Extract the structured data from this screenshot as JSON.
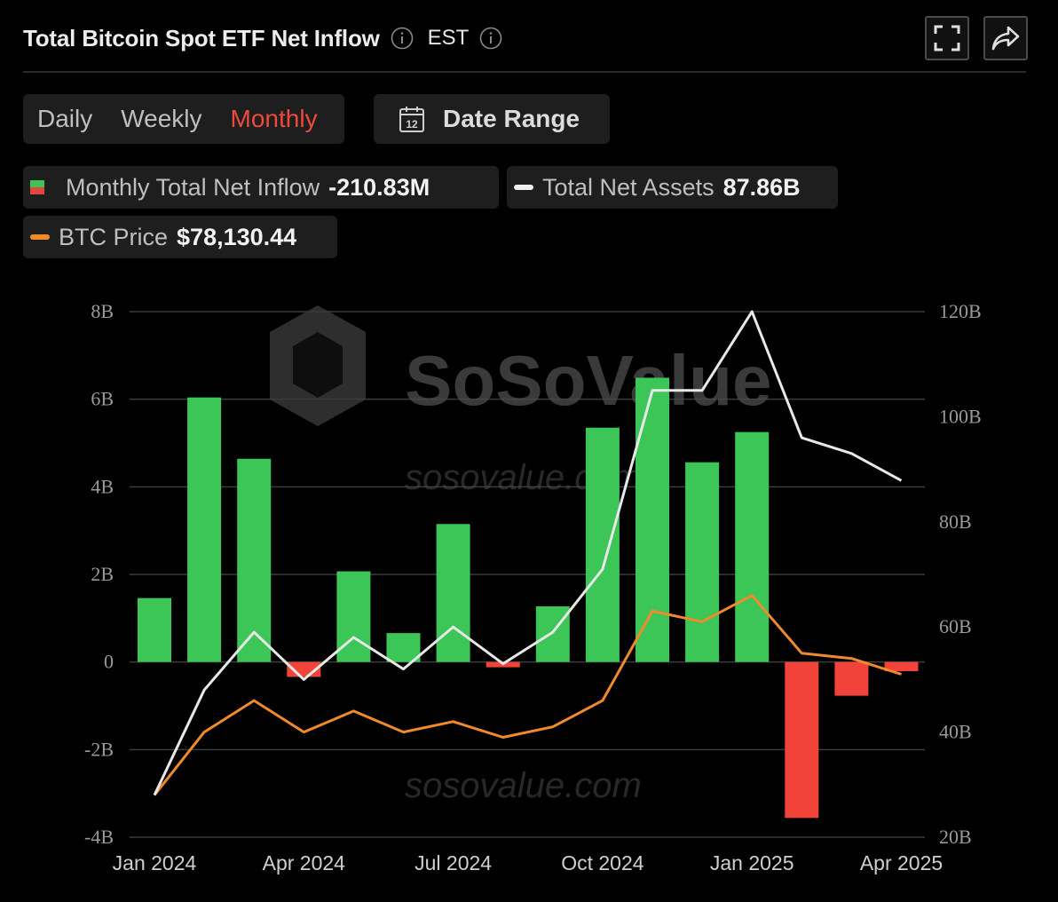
{
  "header": {
    "title": "Total Bitcoin Spot ETF Net Inflow",
    "timezone": "EST",
    "icons": [
      "info-icon",
      "fullscreen-icon",
      "share-icon"
    ]
  },
  "periods": {
    "daily": "Daily",
    "weekly": "Weekly",
    "monthly": "Monthly",
    "active": "Monthly"
  },
  "date_range": {
    "label": "Date Range",
    "icon_number": "12"
  },
  "legend": {
    "inflow": {
      "label": "Monthly Total Net Inflow",
      "value": "-210.83M"
    },
    "assets": {
      "label": "Total Net Assets",
      "value": "87.86B"
    },
    "price": {
      "label": "BTC Price",
      "value": "$78,130.44"
    }
  },
  "watermark": {
    "brand": "SoSoValue",
    "url": "sosovalue.com"
  },
  "colors": {
    "positive": "#3cc658",
    "negative": "#f2433a",
    "assets_line": "#e8e8e8",
    "price_line": "#f08a2b",
    "active_tab": "#ee4a3c",
    "grid": "#3c3c3c"
  },
  "chart_data": {
    "type": "bar",
    "categories": [
      "Jan 2024",
      "Feb 2024",
      "Mar 2024",
      "Apr 2024",
      "May 2024",
      "Jun 2024",
      "Jul 2024",
      "Aug 2024",
      "Sep 2024",
      "Oct 2024",
      "Nov 2024",
      "Dec 2024",
      "Jan 2025",
      "Feb 2025",
      "Mar 2025",
      "Apr 2025"
    ],
    "x_tick_labels": [
      "Jan 2024",
      "Apr 2024",
      "Jul 2024",
      "Oct 2024",
      "Jan 2025",
      "Apr 2025"
    ],
    "left_axis": {
      "ticks": [
        "8B",
        "6B",
        "4B",
        "2B",
        "0",
        "-2B",
        "-4B"
      ],
      "ylim_billion": [
        -4,
        8
      ]
    },
    "right_axis": {
      "ticks": [
        "120B",
        "100B",
        "80B",
        "60B",
        "40B",
        "20B"
      ],
      "ylim_billion": [
        20,
        120
      ]
    },
    "series": [
      {
        "name": "Monthly Total Net Inflow",
        "kind": "bar",
        "axis": "left",
        "unit": "billion USD",
        "values": [
          1.46,
          6.04,
          4.64,
          -0.34,
          2.07,
          0.66,
          3.15,
          -0.12,
          1.27,
          5.35,
          6.49,
          4.56,
          5.25,
          -3.56,
          -0.77,
          -0.21
        ]
      },
      {
        "name": "Total Net Assets",
        "kind": "line",
        "axis": "right",
        "unit": "billion USD",
        "values": [
          28.0,
          48.0,
          59.0,
          50.0,
          58.0,
          52.0,
          60.0,
          53.0,
          59.0,
          71.0,
          105.0,
          105.0,
          120.0,
          96.0,
          93.0,
          87.86
        ]
      },
      {
        "name": "BTC Price",
        "kind": "line",
        "axis": "right",
        "unit": "index on right axis",
        "values": [
          28.0,
          40.0,
          46.0,
          40.0,
          44.0,
          40.0,
          42.0,
          39.0,
          41.0,
          46.0,
          63.0,
          61.0,
          66.0,
          55.0,
          54.0,
          51.0
        ]
      }
    ],
    "grid": true,
    "legend_position": "top-left"
  }
}
